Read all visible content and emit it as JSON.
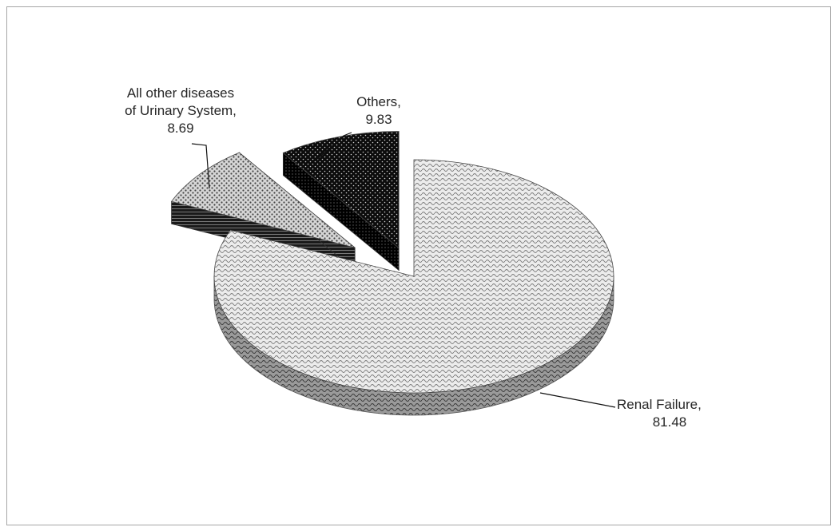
{
  "chart_data": {
    "type": "pie",
    "three_d": true,
    "title": "",
    "slices": [
      {
        "name": "Renal Failure",
        "value": 81.48,
        "label_lines": [
          "Renal Failure,",
          "81.48"
        ],
        "pattern": "wave-light"
      },
      {
        "name": "All other diseases of Urinary System",
        "value": 8.69,
        "label_lines": [
          "All other diseases",
          "of Urinary System,",
          "8.69"
        ],
        "pattern": "dots-light"
      },
      {
        "name": "Others",
        "value": 9.83,
        "label_lines": [
          "Others,",
          "9.83"
        ],
        "pattern": "dots-dark"
      }
    ],
    "legend": "none",
    "exploded": [
      "All other diseases of Urinary System",
      "Others"
    ]
  }
}
